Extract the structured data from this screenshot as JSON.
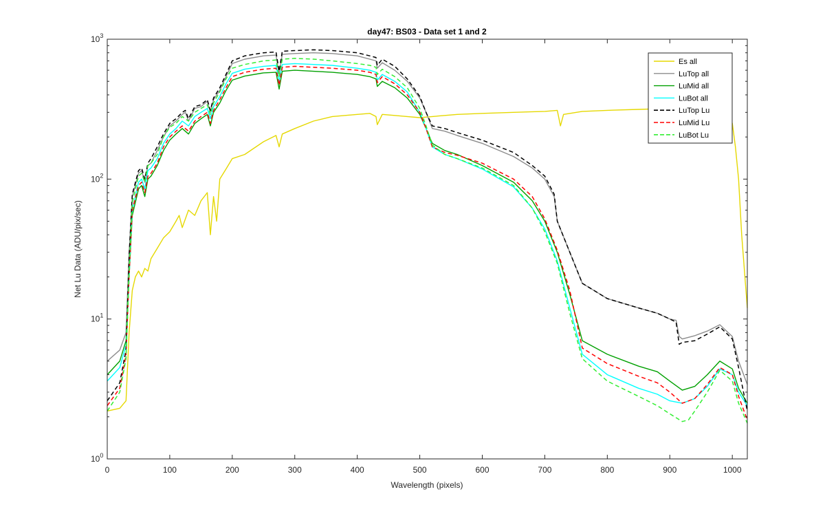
{
  "chart_data": {
    "type": "line",
    "title": "day47: BS03 - Data set 1 and 2",
    "xlabel": "Wavelength (pixels)",
    "ylabel": "Net Lu Data (ADU/pix/sec)",
    "xlim": [
      0,
      1024
    ],
    "ylim": [
      1,
      1000
    ],
    "yscale": "log",
    "xticks": [
      0,
      100,
      200,
      300,
      400,
      500,
      600,
      700,
      800,
      900,
      1000
    ],
    "xtick_labels": [
      "0",
      "100",
      "200",
      "300",
      "400",
      "500",
      "600",
      "700",
      "800",
      "900",
      "1000"
    ],
    "yticks": [
      1,
      10,
      100,
      1000
    ],
    "ytick_labels": [
      {
        "base": "10",
        "exp": "0"
      },
      {
        "base": "10",
        "exp": "1"
      },
      {
        "base": "10",
        "exp": "2"
      },
      {
        "base": "10",
        "exp": "3"
      }
    ],
    "grid": false,
    "legend_position": "top-right",
    "series": [
      {
        "name": "Es  all",
        "color": "#e5d800",
        "dash": "solid",
        "x": [
          0,
          20,
          30,
          35,
          40,
          45,
          50,
          55,
          60,
          65,
          70,
          80,
          90,
          100,
          110,
          115,
          120,
          130,
          140,
          150,
          160,
          165,
          170,
          175,
          180,
          190,
          200,
          220,
          250,
          270,
          275,
          280,
          300,
          330,
          360,
          400,
          420,
          430,
          432,
          440,
          460,
          480,
          500,
          520,
          540,
          560,
          600,
          650,
          700,
          720,
          725,
          730,
          760,
          800,
          850,
          900,
          950,
          980,
          990,
          995,
          1000,
          1005,
          1010,
          1015,
          1024
        ],
        "y": [
          2.2,
          2.3,
          2.6,
          8,
          16,
          20,
          22,
          20,
          23,
          22,
          27,
          32,
          38,
          42,
          50,
          55,
          45,
          60,
          55,
          70,
          80,
          40,
          75,
          50,
          100,
          118,
          140,
          150,
          185,
          205,
          170,
          210,
          230,
          260,
          280,
          290,
          295,
          280,
          245,
          290,
          285,
          280,
          275,
          280,
          285,
          290,
          295,
          300,
          305,
          310,
          240,
          290,
          305,
          310,
          315,
          320,
          330,
          345,
          360,
          300,
          250,
          170,
          100,
          40,
          12
        ]
      },
      {
        "name": "LuTop  all",
        "color": "#8c8c8c",
        "dash": "solid",
        "x": [
          0,
          20,
          30,
          35,
          40,
          50,
          55,
          60,
          65,
          70,
          80,
          90,
          100,
          110,
          120,
          125,
          130,
          140,
          150,
          160,
          165,
          170,
          180,
          190,
          200,
          220,
          250,
          270,
          275,
          280,
          300,
          330,
          360,
          400,
          420,
          430,
          432,
          440,
          460,
          480,
          500,
          510,
          520,
          540,
          560,
          600,
          650,
          680,
          700,
          715,
          720,
          740,
          760,
          800,
          850,
          880,
          900,
          910,
          915,
          920,
          940,
          960,
          980,
          1000,
          1010,
          1024
        ],
        "y": [
          5,
          6,
          8,
          30,
          75,
          110,
          115,
          95,
          125,
          130,
          160,
          200,
          240,
          260,
          290,
          300,
          260,
          320,
          330,
          360,
          300,
          370,
          430,
          540,
          670,
          720,
          760,
          770,
          560,
          780,
          790,
          800,
          790,
          760,
          720,
          700,
          620,
          680,
          600,
          500,
          380,
          300,
          230,
          220,
          205,
          180,
          145,
          120,
          100,
          75,
          50,
          30,
          18,
          14,
          12,
          11,
          10,
          9.8,
          7.5,
          7.2,
          7.6,
          8.2,
          9.1,
          7.5,
          5,
          3.4
        ]
      },
      {
        "name": "LuMid  all",
        "color": "#00a000",
        "dash": "solid",
        "x": [
          0,
          20,
          30,
          35,
          40,
          50,
          55,
          60,
          65,
          70,
          80,
          90,
          100,
          110,
          120,
          130,
          140,
          150,
          160,
          165,
          170,
          180,
          190,
          200,
          220,
          250,
          270,
          275,
          280,
          300,
          330,
          360,
          400,
          420,
          430,
          432,
          440,
          460,
          480,
          500,
          510,
          520,
          540,
          560,
          600,
          650,
          680,
          700,
          720,
          740,
          760,
          800,
          850,
          880,
          900,
          920,
          940,
          960,
          980,
          1000,
          1010,
          1024
        ],
        "y": [
          4,
          5,
          7,
          20,
          55,
          85,
          90,
          75,
          100,
          105,
          125,
          160,
          190,
          210,
          230,
          210,
          250,
          270,
          290,
          240,
          300,
          350,
          430,
          510,
          545,
          575,
          580,
          440,
          590,
          600,
          590,
          580,
          560,
          540,
          520,
          460,
          500,
          450,
          380,
          290,
          230,
          180,
          160,
          150,
          125,
          95,
          70,
          50,
          30,
          15,
          7,
          5.6,
          4.6,
          4.2,
          3.6,
          3.1,
          3.3,
          4,
          5,
          4.4,
          3.2,
          2.5
        ]
      },
      {
        "name": "LuBot  all",
        "color": "#00ffff",
        "dash": "solid",
        "x": [
          0,
          20,
          30,
          35,
          40,
          50,
          55,
          60,
          65,
          70,
          80,
          90,
          100,
          110,
          120,
          130,
          140,
          150,
          160,
          165,
          170,
          180,
          190,
          200,
          220,
          250,
          270,
          275,
          280,
          300,
          330,
          360,
          400,
          420,
          430,
          432,
          440,
          460,
          480,
          500,
          510,
          520,
          540,
          560,
          600,
          650,
          680,
          700,
          720,
          740,
          760,
          800,
          850,
          880,
          900,
          920,
          940,
          960,
          980,
          1000,
          1010,
          1024
        ],
        "y": [
          3.6,
          4.5,
          6.5,
          20,
          60,
          95,
          100,
          85,
          115,
          120,
          140,
          180,
          210,
          230,
          260,
          240,
          280,
          300,
          320,
          270,
          330,
          390,
          480,
          570,
          610,
          640,
          650,
          500,
          660,
          670,
          660,
          650,
          620,
          600,
          580,
          510,
          560,
          500,
          420,
          300,
          230,
          170,
          150,
          140,
          118,
          88,
          62,
          44,
          26,
          12,
          5.6,
          4,
          3.2,
          2.9,
          2.6,
          2.5,
          2.7,
          3.3,
          4.4,
          4,
          3,
          2.4
        ]
      },
      {
        "name": "LuTop  Lu",
        "color": "#000000",
        "dash": "dashed",
        "x": [
          0,
          20,
          30,
          35,
          40,
          50,
          55,
          60,
          65,
          70,
          80,
          90,
          100,
          110,
          120,
          125,
          130,
          140,
          150,
          160,
          165,
          170,
          180,
          190,
          200,
          220,
          250,
          270,
          275,
          280,
          300,
          330,
          360,
          400,
          420,
          430,
          432,
          440,
          460,
          480,
          500,
          510,
          520,
          540,
          560,
          600,
          650,
          680,
          700,
          715,
          720,
          740,
          760,
          800,
          850,
          880,
          900,
          910,
          915,
          920,
          940,
          960,
          980,
          1000,
          1010,
          1024
        ],
        "y": [
          2.6,
          3.5,
          6,
          28,
          78,
          115,
          120,
          100,
          130,
          140,
          170,
          210,
          250,
          270,
          300,
          310,
          270,
          330,
          340,
          370,
          310,
          380,
          450,
          560,
          700,
          760,
          800,
          810,
          590,
          820,
          830,
          840,
          830,
          800,
          760,
          740,
          650,
          720,
          640,
          520,
          390,
          300,
          240,
          230,
          215,
          190,
          155,
          125,
          105,
          78,
          50,
          30,
          18,
          14,
          12,
          11,
          10,
          9.5,
          6.6,
          6.8,
          7,
          7.8,
          8.8,
          7.2,
          4.5,
          2.2
        ]
      },
      {
        "name": "LuMid  Lu",
        "color": "#ff0000",
        "dash": "dashed",
        "x": [
          0,
          20,
          30,
          35,
          40,
          50,
          55,
          60,
          65,
          70,
          80,
          90,
          100,
          110,
          120,
          130,
          140,
          150,
          160,
          165,
          170,
          180,
          190,
          200,
          220,
          250,
          270,
          275,
          280,
          300,
          330,
          360,
          400,
          420,
          430,
          432,
          440,
          460,
          480,
          500,
          510,
          520,
          540,
          560,
          600,
          650,
          680,
          700,
          720,
          740,
          760,
          800,
          850,
          880,
          900,
          920,
          940,
          960,
          980,
          1000,
          1010,
          1024
        ],
        "y": [
          2.4,
          3.2,
          5.5,
          20,
          60,
          90,
          95,
          80,
          105,
          110,
          130,
          170,
          200,
          220,
          240,
          220,
          260,
          280,
          300,
          250,
          310,
          370,
          450,
          540,
          580,
          610,
          620,
          470,
          630,
          640,
          630,
          620,
          600,
          580,
          560,
          490,
          540,
          480,
          400,
          300,
          230,
          170,
          155,
          148,
          130,
          100,
          75,
          52,
          31,
          16,
          6.2,
          4.8,
          3.9,
          3.5,
          3,
          2.5,
          2.7,
          3.4,
          4.5,
          4,
          2.8,
          1.9
        ]
      },
      {
        "name": "LuBot  Lu",
        "color": "#33ee33",
        "dash": "dashed",
        "x": [
          0,
          20,
          30,
          35,
          40,
          50,
          55,
          60,
          65,
          70,
          80,
          90,
          100,
          110,
          120,
          130,
          140,
          150,
          160,
          165,
          170,
          180,
          190,
          200,
          220,
          250,
          270,
          275,
          280,
          300,
          330,
          360,
          400,
          420,
          430,
          432,
          440,
          460,
          480,
          500,
          510,
          520,
          540,
          560,
          600,
          650,
          680,
          700,
          720,
          740,
          760,
          800,
          850,
          880,
          900,
          920,
          930,
          940,
          960,
          980,
          1000,
          1010,
          1024
        ],
        "y": [
          2.2,
          3,
          5.2,
          22,
          68,
          105,
          110,
          95,
          125,
          130,
          150,
          200,
          235,
          250,
          280,
          260,
          300,
          320,
          340,
          290,
          350,
          420,
          520,
          620,
          660,
          700,
          710,
          540,
          720,
          730,
          720,
          700,
          670,
          650,
          630,
          560,
          610,
          540,
          450,
          320,
          240,
          175,
          150,
          140,
          120,
          90,
          62,
          42,
          25,
          11,
          5.2,
          3.6,
          2.8,
          2.4,
          2.1,
          1.85,
          1.9,
          2.2,
          3,
          4.3,
          3.6,
          2.5,
          1.8
        ]
      }
    ]
  }
}
